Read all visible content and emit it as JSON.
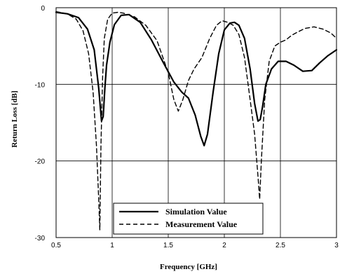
{
  "chart_data": {
    "type": "line",
    "title": "",
    "xlabel": "Frequency [GHz]",
    "ylabel": "Return Loss [dB]",
    "xlim": [
      0.5,
      3
    ],
    "ylim": [
      -30,
      0
    ],
    "xticks": [
      "0.5",
      "1",
      "1.5",
      "2",
      "2.5",
      "3"
    ],
    "yticks": [
      "0",
      "-10",
      "-20",
      "-30"
    ],
    "grid": true,
    "legend_position": "bottom-center",
    "series": [
      {
        "name": "Simulation Value",
        "style": "solid",
        "color": "#000000",
        "x": [
          0.5,
          0.6,
          0.7,
          0.78,
          0.84,
          0.88,
          0.905,
          0.92,
          0.935,
          0.95,
          0.98,
          1.02,
          1.08,
          1.15,
          1.25,
          1.35,
          1.45,
          1.55,
          1.62,
          1.68,
          1.74,
          1.79,
          1.82,
          1.85,
          1.9,
          1.95,
          2.0,
          2.05,
          2.09,
          2.13,
          2.18,
          2.23,
          2.27,
          2.3,
          2.32,
          2.34,
          2.37,
          2.42,
          2.48,
          2.55,
          2.62,
          2.7,
          2.78,
          2.85,
          2.92,
          3.0
        ],
        "y": [
          -0.6,
          -0.8,
          -1.3,
          -2.8,
          -5.5,
          -10.5,
          -14.8,
          -14.2,
          -10.5,
          -7.5,
          -4.5,
          -2.2,
          -1.0,
          -0.9,
          -1.9,
          -4.2,
          -7.0,
          -9.7,
          -11.0,
          -11.8,
          -14.0,
          -16.8,
          -18.0,
          -16.5,
          -11.0,
          -6.0,
          -2.9,
          -2.0,
          -1.9,
          -2.3,
          -4.0,
          -8.0,
          -12.5,
          -14.8,
          -14.6,
          -13.0,
          -10.0,
          -8.0,
          -7.0,
          -7.0,
          -7.5,
          -8.3,
          -8.2,
          -7.2,
          -6.3,
          -5.5
        ]
      },
      {
        "name": "Measurement Value",
        "style": "dashed",
        "color": "#000000",
        "x": [
          0.5,
          0.6,
          0.68,
          0.74,
          0.79,
          0.83,
          0.86,
          0.88,
          0.89,
          0.9,
          0.915,
          0.93,
          0.96,
          1.0,
          1.05,
          1.1,
          1.2,
          1.3,
          1.4,
          1.5,
          1.55,
          1.59,
          1.63,
          1.68,
          1.73,
          1.8,
          1.87,
          1.93,
          1.98,
          2.03,
          2.08,
          2.13,
          2.18,
          2.23,
          2.27,
          2.3,
          2.315,
          2.33,
          2.36,
          2.4,
          2.45,
          2.5,
          2.55,
          2.6,
          2.65,
          2.72,
          2.8,
          2.88,
          2.95,
          3.0
        ],
        "y": [
          -0.5,
          -0.8,
          -1.5,
          -3.0,
          -6.0,
          -11.0,
          -18.0,
          -25.0,
          -29.0,
          -18.0,
          -9.0,
          -4.0,
          -1.5,
          -0.7,
          -0.6,
          -0.7,
          -1.2,
          -2.3,
          -4.3,
          -8.5,
          -12.0,
          -13.5,
          -12.0,
          -9.5,
          -8.0,
          -6.5,
          -4.0,
          -2.3,
          -1.7,
          -1.9,
          -2.3,
          -3.5,
          -6.5,
          -12.0,
          -16.5,
          -22.0,
          -25.0,
          -20.0,
          -12.0,
          -7.0,
          -5.0,
          -4.5,
          -4.2,
          -3.6,
          -3.2,
          -2.7,
          -2.5,
          -2.8,
          -3.3,
          -4.0
        ]
      }
    ]
  }
}
